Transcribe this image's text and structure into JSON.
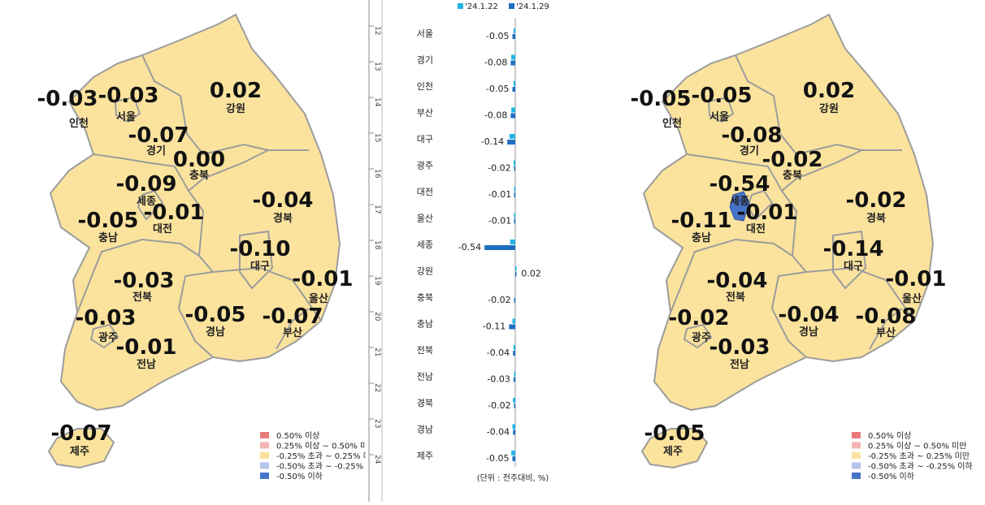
{
  "colors": {
    "land": "#fbe39e",
    "border": "#9c9c9c",
    "highlight": "#4774c9",
    "bar_prev": "#21b4e8",
    "bar_curr": "#1f6fc2"
  },
  "legend": [
    {
      "label": "0.50% 이상",
      "color": "#e87a7a"
    },
    {
      "label": "0.25% 이상 ~ 0.50% 미만",
      "color": "#f4b4b4"
    },
    {
      "label": "-0.25% 초과 ~ 0.25% 미만",
      "color": "#fbe39e"
    },
    {
      "label": "-0.50% 초과 ~ -0.25% 이하",
      "color": "#b4c4ea"
    },
    {
      "label": "-0.50% 이하",
      "color": "#4774c9"
    }
  ],
  "map_left": {
    "regions": [
      {
        "name": "인천",
        "value": "-0.03"
      },
      {
        "name": "서울",
        "value": "-0.03"
      },
      {
        "name": "강원",
        "value": "0.02"
      },
      {
        "name": "경기",
        "value": "-0.07"
      },
      {
        "name": "충북",
        "value": "0.00"
      },
      {
        "name": "세종",
        "value": "-0.09"
      },
      {
        "name": "대전",
        "value": "-0.01"
      },
      {
        "name": "충남",
        "value": "-0.05"
      },
      {
        "name": "경북",
        "value": "-0.04"
      },
      {
        "name": "대구",
        "value": "-0.10"
      },
      {
        "name": "울산",
        "value": "-0.01"
      },
      {
        "name": "전북",
        "value": "-0.03"
      },
      {
        "name": "광주",
        "value": "-0.03"
      },
      {
        "name": "경남",
        "value": "-0.05"
      },
      {
        "name": "부산",
        "value": "-0.07"
      },
      {
        "name": "전남",
        "value": "-0.01"
      },
      {
        "name": "제주",
        "value": "-0.07"
      }
    ]
  },
  "map_right": {
    "regions": [
      {
        "name": "인천",
        "value": "-0.05"
      },
      {
        "name": "서울",
        "value": "-0.05"
      },
      {
        "name": "강원",
        "value": "0.02"
      },
      {
        "name": "경기",
        "value": "-0.08"
      },
      {
        "name": "충북",
        "value": "-0.02"
      },
      {
        "name": "세종",
        "value": "-0.54"
      },
      {
        "name": "대전",
        "value": "-0.01"
      },
      {
        "name": "충남",
        "value": "-0.11"
      },
      {
        "name": "경북",
        "value": "-0.02"
      },
      {
        "name": "대구",
        "value": "-0.14"
      },
      {
        "name": "울산",
        "value": "-0.01"
      },
      {
        "name": "전북",
        "value": "-0.04"
      },
      {
        "name": "광주",
        "value": "-0.02"
      },
      {
        "name": "경남",
        "value": "-0.04"
      },
      {
        "name": "부산",
        "value": "-0.08"
      },
      {
        "name": "전남",
        "value": "-0.03"
      },
      {
        "name": "제주",
        "value": "-0.05"
      }
    ]
  },
  "chart_data": {
    "type": "bar",
    "orientation": "horizontal",
    "categories": [
      "서울",
      "경기",
      "인천",
      "부산",
      "대구",
      "광주",
      "대전",
      "울산",
      "세종",
      "강원",
      "충북",
      "충남",
      "전북",
      "전남",
      "경북",
      "경남",
      "제주"
    ],
    "series": [
      {
        "name": "'24.1.22",
        "values": [
          -0.03,
          -0.07,
          -0.03,
          -0.07,
          -0.1,
          -0.03,
          -0.01,
          -0.01,
          -0.09,
          0.02,
          0.0,
          -0.05,
          -0.03,
          -0.01,
          -0.04,
          -0.05,
          -0.07
        ]
      },
      {
        "name": "'24.1.29",
        "values": [
          -0.05,
          -0.08,
          -0.05,
          -0.08,
          -0.14,
          -0.02,
          -0.01,
          -0.01,
          -0.54,
          0.02,
          -0.02,
          -0.11,
          -0.04,
          -0.03,
          -0.02,
          -0.04,
          -0.05
        ]
      }
    ],
    "data_labels": [
      "-0.05",
      "-0.08",
      "-0.05",
      "-0.08",
      "-0.14",
      "-0.02",
      "-0.01",
      "-0.01",
      "-0.54",
      "0.02",
      "-0.02",
      "-0.11",
      "-0.04",
      "-0.03",
      "-0.02",
      "-0.04",
      "-0.05"
    ],
    "unit_note": "(단위 : 전주대비, %)",
    "side_ticks": [
      "12",
      "13",
      "14",
      "15",
      "16",
      "17",
      "18",
      "19",
      "20",
      "21",
      "22",
      "23",
      "24"
    ],
    "legend_position": "top"
  }
}
